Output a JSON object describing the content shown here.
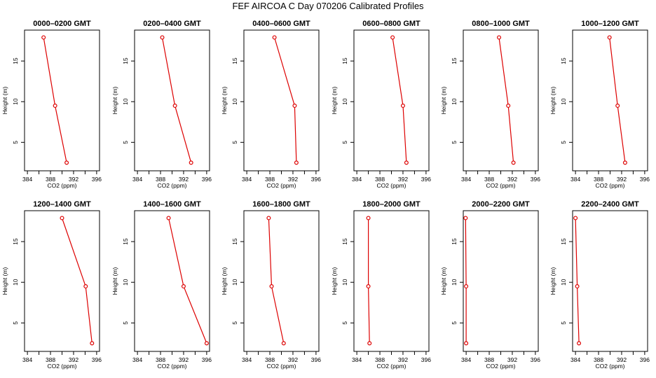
{
  "title": "FEF AIRCOA C  Day 070206  Calibrated Profiles",
  "colors": {
    "series": "#dd0000",
    "axis": "#000000"
  },
  "chart_data": [
    {
      "type": "line",
      "title": "0000–0200 GMT",
      "xlabel": "CO2 (ppm)",
      "ylabel": "Height (m)",
      "xlim": [
        383.5,
        396.5
      ],
      "ylim": [
        1.5,
        18.8
      ],
      "xticks": [
        384,
        388,
        392,
        396
      ],
      "minor_xticks": [
        386,
        390,
        394
      ],
      "yticks": [
        5,
        10,
        15
      ],
      "x": [
        386.8,
        388.8,
        390.8
      ],
      "y": [
        17.9,
        9.5,
        2.5
      ]
    },
    {
      "type": "line",
      "title": "0200–0400 GMT",
      "xlabel": "CO2 (ppm)",
      "ylabel": "Height (m)",
      "xlim": [
        383.5,
        396.5
      ],
      "ylim": [
        1.5,
        18.8
      ],
      "xticks": [
        384,
        388,
        392,
        396
      ],
      "minor_xticks": [
        386,
        390,
        394
      ],
      "yticks": [
        5,
        10,
        15
      ],
      "x": [
        388.3,
        390.5,
        393.3
      ],
      "y": [
        17.9,
        9.5,
        2.5
      ]
    },
    {
      "type": "line",
      "title": "0400–0600 GMT",
      "xlabel": "CO2 (ppm)",
      "ylabel": "Height (m)",
      "xlim": [
        383.5,
        396.5
      ],
      "ylim": [
        1.5,
        18.8
      ],
      "xticks": [
        384,
        388,
        392,
        396
      ],
      "minor_xticks": [
        386,
        390,
        394
      ],
      "yticks": [
        5,
        10,
        15
      ],
      "x": [
        388.8,
        392.3,
        392.6
      ],
      "y": [
        17.9,
        9.5,
        2.5
      ]
    },
    {
      "type": "line",
      "title": "0600–0800 GMT",
      "xlabel": "CO2 (ppm)",
      "ylabel": "Height (m)",
      "xlim": [
        383.5,
        396.5
      ],
      "ylim": [
        1.5,
        18.8
      ],
      "xticks": [
        384,
        388,
        392,
        396
      ],
      "minor_xticks": [
        386,
        390,
        394
      ],
      "yticks": [
        5,
        10,
        15
      ],
      "x": [
        390.2,
        392.0,
        392.6
      ],
      "y": [
        17.9,
        9.5,
        2.5
      ]
    },
    {
      "type": "line",
      "title": "0800–1000 GMT",
      "xlabel": "CO2 (ppm)",
      "ylabel": "Height (m)",
      "xlim": [
        383.5,
        396.5
      ],
      "ylim": [
        1.5,
        18.8
      ],
      "xticks": [
        384,
        388,
        392,
        396
      ],
      "minor_xticks": [
        386,
        390,
        394
      ],
      "yticks": [
        5,
        10,
        15
      ],
      "x": [
        389.7,
        391.3,
        392.2
      ],
      "y": [
        17.9,
        9.5,
        2.5
      ]
    },
    {
      "type": "line",
      "title": "1000–1200 GMT",
      "xlabel": "CO2 (ppm)",
      "ylabel": "Height (m)",
      "xlim": [
        383.5,
        396.5
      ],
      "ylim": [
        1.5,
        18.8
      ],
      "xticks": [
        384,
        388,
        392,
        396
      ],
      "minor_xticks": [
        386,
        390,
        394
      ],
      "yticks": [
        5,
        10,
        15
      ],
      "x": [
        389.9,
        391.3,
        392.6
      ],
      "y": [
        17.9,
        9.5,
        2.5
      ]
    },
    {
      "type": "line",
      "title": "1200–1400 GMT",
      "xlabel": "CO2 (ppm)",
      "ylabel": "Height (m)",
      "xlim": [
        383.5,
        396.5
      ],
      "ylim": [
        1.5,
        18.8
      ],
      "xticks": [
        384,
        388,
        392,
        396
      ],
      "minor_xticks": [
        386,
        390,
        394
      ],
      "yticks": [
        5,
        10,
        15
      ],
      "x": [
        390.0,
        394.1,
        395.2
      ],
      "y": [
        17.9,
        9.5,
        2.5
      ]
    },
    {
      "type": "line",
      "title": "1400–1600 GMT",
      "xlabel": "CO2 (ppm)",
      "ylabel": "Height (m)",
      "xlim": [
        383.5,
        396.5
      ],
      "ylim": [
        1.5,
        18.8
      ],
      "xticks": [
        384,
        388,
        392,
        396
      ],
      "minor_xticks": [
        386,
        390,
        394
      ],
      "yticks": [
        5,
        10,
        15
      ],
      "x": [
        389.4,
        392.0,
        396.0
      ],
      "y": [
        17.9,
        9.5,
        2.5
      ]
    },
    {
      "type": "line",
      "title": "1600–1800 GMT",
      "xlabel": "CO2 (ppm)",
      "ylabel": "Height (m)",
      "xlim": [
        383.5,
        396.5
      ],
      "ylim": [
        1.5,
        18.8
      ],
      "xticks": [
        384,
        388,
        392,
        396
      ],
      "minor_xticks": [
        386,
        390,
        394
      ],
      "yticks": [
        5,
        10,
        15
      ],
      "x": [
        387.8,
        388.3,
        390.4
      ],
      "y": [
        17.9,
        9.5,
        2.5
      ]
    },
    {
      "type": "line",
      "title": "1800–2000 GMT",
      "xlabel": "CO2 (ppm)",
      "ylabel": "Height (m)",
      "xlim": [
        383.5,
        396.5
      ],
      "ylim": [
        1.5,
        18.8
      ],
      "xticks": [
        384,
        388,
        392,
        396
      ],
      "minor_xticks": [
        386,
        390,
        394
      ],
      "yticks": [
        5,
        10,
        15
      ],
      "x": [
        386.0,
        386.0,
        386.2
      ],
      "y": [
        17.9,
        9.5,
        2.5
      ]
    },
    {
      "type": "line",
      "title": "2000–2200 GMT",
      "xlabel": "CO2 (ppm)",
      "ylabel": "Height (m)",
      "xlim": [
        383.5,
        396.5
      ],
      "ylim": [
        1.5,
        18.8
      ],
      "xticks": [
        384,
        388,
        392,
        396
      ],
      "minor_xticks": [
        386,
        390,
        394
      ],
      "yticks": [
        5,
        10,
        15
      ],
      "x": [
        383.9,
        384.0,
        384.0
      ],
      "y": [
        17.9,
        9.5,
        2.5
      ]
    },
    {
      "type": "line",
      "title": "2200–2400 GMT",
      "xlabel": "CO2 (ppm)",
      "ylabel": "Height (m)",
      "xlim": [
        383.5,
        396.5
      ],
      "ylim": [
        1.5,
        18.8
      ],
      "xticks": [
        384,
        388,
        392,
        396
      ],
      "minor_xticks": [
        386,
        390,
        394
      ],
      "yticks": [
        5,
        10,
        15
      ],
      "x": [
        384.0,
        384.3,
        384.6
      ],
      "y": [
        17.9,
        9.5,
        2.5
      ]
    }
  ]
}
